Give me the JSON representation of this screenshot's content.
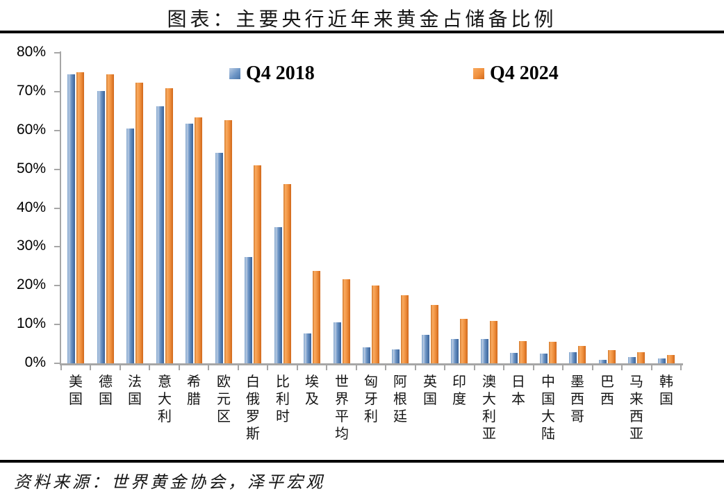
{
  "title": "图表：主要央行近年来黄金占储备比例",
  "source": "资料来源：世界黄金协会，泽平宏观",
  "colors": {
    "q4_2018_bar": "#4F81BD",
    "q4_2024_bar": "#ED8A33",
    "axis": "#A6A6A6",
    "rule": "#000000"
  },
  "chart_data": {
    "type": "bar",
    "title": "图表：主要央行近年来黄金占储备比例",
    "categories": [
      "美国",
      "德国",
      "法国",
      "意大利",
      "希腊",
      "欧元区",
      "白俄罗斯",
      "比利时",
      "埃及",
      "世界平均",
      "匈牙利",
      "阿根廷",
      "英国",
      "印度",
      "澳大利亚",
      "日本",
      "中国大陆",
      "墨西哥",
      "巴西",
      "马来西亚",
      "韩国"
    ],
    "series": [
      {
        "name": "Q4 2018",
        "color": "#4F81BD",
        "values": [
          74.5,
          70.2,
          60.5,
          66.2,
          61.7,
          54.2,
          27.3,
          35.0,
          7.7,
          10.6,
          4.1,
          3.5,
          7.4,
          6.3,
          6.2,
          2.6,
          2.5,
          2.9,
          0.9,
          1.7,
          1.2
        ]
      },
      {
        "name": "Q4 2024",
        "color": "#ED8A33",
        "values": [
          75.0,
          74.5,
          72.3,
          70.9,
          63.4,
          62.6,
          51.0,
          46.2,
          23.8,
          21.6,
          20.0,
          17.5,
          15.1,
          11.5,
          11.0,
          5.8,
          5.5,
          4.4,
          3.4,
          2.9,
          2.1
        ]
      }
    ],
    "xlabel": "",
    "ylabel": "",
    "ylim": [
      0,
      80
    ],
    "yticks": [
      0,
      10,
      20,
      30,
      40,
      50,
      60,
      70,
      80
    ],
    "ytick_suffix": "%",
    "grid": false,
    "legend_position": "top-inside",
    "source": "资料来源：世界黄金协会，泽平宏观"
  }
}
